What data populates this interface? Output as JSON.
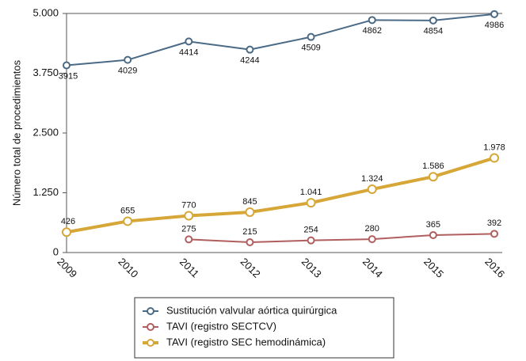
{
  "chart_data": {
    "type": "line",
    "y_label": "Número total de procedimientos",
    "categories": [
      "2009",
      "2010",
      "2011",
      "2012",
      "2013",
      "2014",
      "2015",
      "2016"
    ],
    "series": [
      {
        "name": "Sustitución valvular aórtica quirúrgica",
        "color": "#4a6a86",
        "values": [
          3915,
          4029,
          4414,
          4244,
          4509,
          4862,
          4854,
          4986
        ]
      },
      {
        "name": "TAVI (registro SECTCV)",
        "color": "#b05e5e",
        "values": [
          null,
          null,
          275,
          215,
          254,
          280,
          365,
          392
        ]
      },
      {
        "name": "TAVI (registro SEC hemodinámica)",
        "color": "#d6a637",
        "values": [
          426,
          655,
          770,
          845,
          1041,
          1324,
          1586,
          1978
        ],
        "value_labels": [
          "426",
          "655",
          "770",
          "845",
          "1.041",
          "1.324",
          "1.586",
          "1.978"
        ]
      }
    ],
    "ylim": [
      0,
      5000
    ],
    "yticks": [
      0,
      {
        "value": 1250,
        "label": "1.250"
      },
      {
        "value": 2500,
        "label": "2.500"
      },
      {
        "value": 3750,
        "label": "3.750"
      },
      {
        "value": 5000,
        "label": "5.000"
      }
    ],
    "grid": false
  }
}
